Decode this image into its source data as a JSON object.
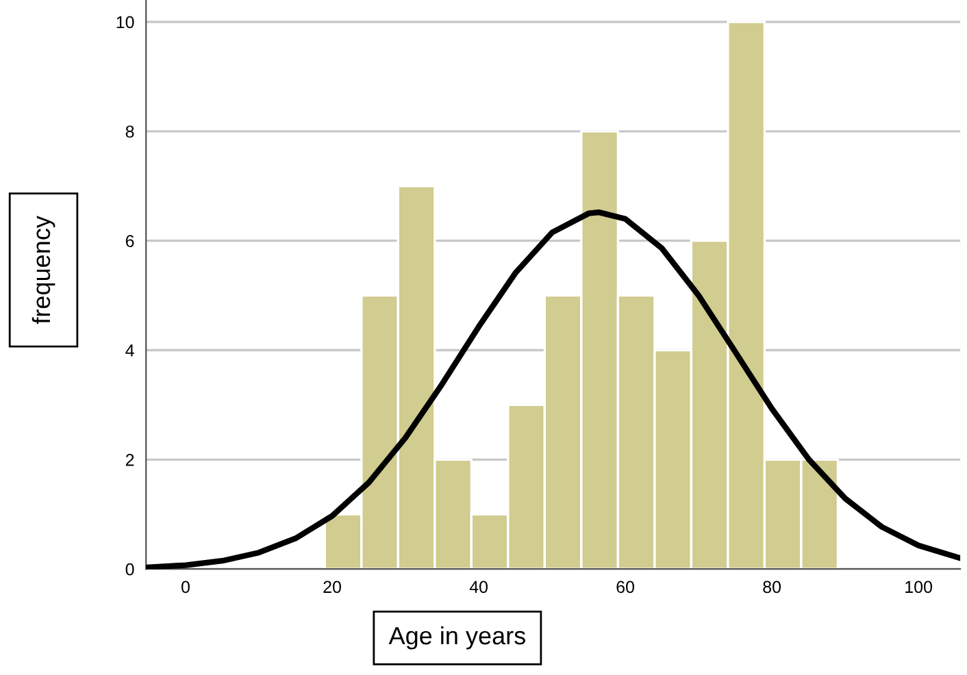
{
  "chart_data": {
    "type": "histogram",
    "xlabel": "Age in years",
    "ylabel": "frequency",
    "bins": [
      19,
      24,
      29,
      34,
      39,
      44,
      49,
      54,
      59,
      64,
      69,
      74,
      79,
      84,
      89
    ],
    "values": [
      1,
      5,
      7,
      2,
      1,
      3,
      5,
      8,
      5,
      4,
      6,
      10,
      2,
      2
    ],
    "color": "#d1cc8f",
    "series": [
      {
        "type": "line",
        "color": "#000000",
        "x": [
          -5.4,
          0,
          5,
          10,
          15,
          20,
          25,
          30,
          35,
          40,
          45,
          50,
          55,
          56.4,
          60,
          65,
          70,
          75,
          80,
          85,
          90,
          95,
          100,
          105.7
        ],
        "values": [
          0.03,
          0.07,
          0.15,
          0.3,
          0.56,
          0.97,
          1.58,
          2.4,
          3.38,
          4.43,
          5.41,
          6.15,
          6.5,
          6.52,
          6.4,
          5.86,
          5.0,
          3.97,
          2.93,
          2.01,
          1.29,
          0.77,
          0.43,
          0.2
        ]
      }
    ],
    "xlim": [
      -5.4,
      105.7
    ],
    "ylim": [
      0,
      10.4
    ],
    "xticks": [
      0,
      20,
      40,
      60,
      80,
      100
    ],
    "yticks": [
      0,
      2,
      4,
      6,
      8,
      10
    ],
    "grid": "y",
    "legend": false
  }
}
